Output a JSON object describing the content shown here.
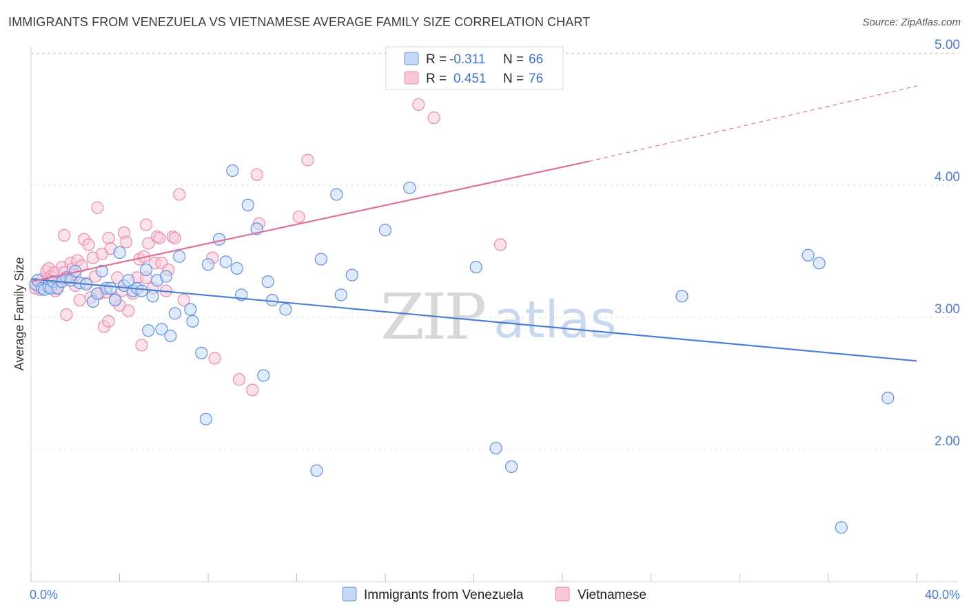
{
  "title": "IMMIGRANTS FROM VENEZUELA VS VIETNAMESE AVERAGE FAMILY SIZE CORRELATION CHART",
  "source": "Source: ZipAtlas.com",
  "watermark": {
    "zip": "ZIP",
    "atlas": "atlas"
  },
  "colors": {
    "blue": "#4a7fd4",
    "blue_fill": "#c5d8f5",
    "pink": "#e07099",
    "pink_fill": "#f8c8d8",
    "grid": "#dcdcdc",
    "axis_text": "#4a7bd0"
  },
  "legend": {
    "rows": [
      {
        "r_label": "R =",
        "r_value": "-0.311",
        "n_label": "N =",
        "n_value": "66",
        "series": "blue"
      },
      {
        "r_label": "R =",
        "r_value": "0.451",
        "n_label": "N =",
        "n_value": "76",
        "series": "pink"
      }
    ]
  },
  "chart_data": {
    "type": "scatter",
    "xlabel": "",
    "ylabel": "Average Family Size",
    "xlim": [
      0,
      40
    ],
    "ylim": [
      1.0,
      5.1
    ],
    "x_tick_labels": [
      "0.0%",
      "40.0%"
    ],
    "y_ticks": [
      2.0,
      3.0,
      4.0,
      5.0
    ],
    "y_tick_labels": [
      "2.00",
      "3.00",
      "4.00",
      "5.00"
    ],
    "grid": "horizontal dashed",
    "legend_placement": "bottom",
    "series": [
      {
        "name": "Immigrants from Venezuela",
        "color": "blue",
        "trend": {
          "x": [
            0,
            40
          ],
          "y": [
            3.29,
            2.67
          ],
          "dashed_from": null
        },
        "points": [
          [
            0.2,
            3.25
          ],
          [
            0.3,
            3.28
          ],
          [
            0.5,
            3.22
          ],
          [
            0.6,
            3.21
          ],
          [
            0.8,
            3.23
          ],
          [
            0.9,
            3.22
          ],
          [
            1.0,
            3.27
          ],
          [
            1.2,
            3.22
          ],
          [
            1.4,
            3.27
          ],
          [
            1.6,
            3.3
          ],
          [
            1.8,
            3.28
          ],
          [
            2.0,
            3.35
          ],
          [
            2.2,
            3.26
          ],
          [
            2.5,
            3.25
          ],
          [
            2.8,
            3.12
          ],
          [
            3.0,
            3.18
          ],
          [
            3.2,
            3.35
          ],
          [
            3.4,
            3.22
          ],
          [
            3.6,
            3.22
          ],
          [
            3.8,
            3.13
          ],
          [
            4.0,
            3.49
          ],
          [
            4.2,
            3.24
          ],
          [
            4.4,
            3.28
          ],
          [
            4.6,
            3.2
          ],
          [
            4.8,
            3.22
          ],
          [
            5.0,
            3.2
          ],
          [
            5.2,
            3.36
          ],
          [
            5.3,
            2.9
          ],
          [
            5.5,
            3.16
          ],
          [
            5.7,
            3.28
          ],
          [
            5.9,
            2.91
          ],
          [
            6.1,
            3.31
          ],
          [
            6.3,
            2.86
          ],
          [
            6.5,
            3.03
          ],
          [
            6.7,
            3.46
          ],
          [
            7.2,
            3.06
          ],
          [
            7.3,
            2.97
          ],
          [
            7.7,
            2.73
          ],
          [
            7.9,
            2.23
          ],
          [
            8.0,
            3.4
          ],
          [
            8.5,
            3.59
          ],
          [
            8.8,
            3.42
          ],
          [
            9.1,
            4.11
          ],
          [
            9.3,
            3.37
          ],
          [
            9.5,
            3.17
          ],
          [
            9.8,
            3.85
          ],
          [
            10.2,
            3.67
          ],
          [
            10.5,
            2.56
          ],
          [
            10.7,
            3.27
          ],
          [
            10.9,
            3.13
          ],
          [
            11.5,
            3.06
          ],
          [
            12.9,
            1.84
          ],
          [
            13.1,
            3.44
          ],
          [
            13.8,
            3.93
          ],
          [
            14.0,
            3.17
          ],
          [
            14.5,
            3.32
          ],
          [
            16.0,
            3.66
          ],
          [
            17.1,
            3.98
          ],
          [
            20.1,
            3.38
          ],
          [
            21.0,
            2.01
          ],
          [
            21.7,
            1.87
          ],
          [
            29.4,
            3.16
          ],
          [
            35.1,
            3.47
          ],
          [
            35.6,
            3.41
          ],
          [
            38.7,
            2.39
          ],
          [
            36.6,
            1.41
          ]
        ]
      },
      {
        "name": "Vietnamese",
        "color": "pink",
        "trend": {
          "x": [
            0,
            25.2
          ],
          "y": [
            3.27,
            4.18
          ],
          "dashed_to": [
            40,
            4.75
          ]
        },
        "points": [
          [
            0.2,
            3.22
          ],
          [
            0.3,
            3.24
          ],
          [
            0.4,
            3.21
          ],
          [
            0.5,
            3.29
          ],
          [
            0.6,
            3.25
          ],
          [
            0.7,
            3.35
          ],
          [
            0.8,
            3.37
          ],
          [
            0.9,
            3.31
          ],
          [
            1.0,
            3.3
          ],
          [
            1.1,
            3.34
          ],
          [
            1.2,
            3.23
          ],
          [
            1.3,
            3.27
          ],
          [
            1.4,
            3.38
          ],
          [
            1.5,
            3.34
          ],
          [
            1.5,
            3.62
          ],
          [
            1.6,
            3.02
          ],
          [
            1.7,
            3.3
          ],
          [
            1.8,
            3.41
          ],
          [
            1.9,
            3.37
          ],
          [
            2.0,
            3.32
          ],
          [
            2.1,
            3.43
          ],
          [
            2.2,
            3.13
          ],
          [
            2.3,
            3.39
          ],
          [
            2.4,
            3.59
          ],
          [
            2.5,
            3.26
          ],
          [
            2.6,
            3.55
          ],
          [
            2.7,
            3.15
          ],
          [
            2.8,
            3.45
          ],
          [
            2.9,
            3.31
          ],
          [
            3.0,
            3.83
          ],
          [
            3.1,
            3.18
          ],
          [
            3.2,
            3.48
          ],
          [
            3.3,
            2.93
          ],
          [
            3.4,
            3.19
          ],
          [
            3.5,
            2.97
          ],
          [
            3.5,
            3.6
          ],
          [
            3.6,
            3.52
          ],
          [
            3.8,
            3.14
          ],
          [
            3.9,
            3.3
          ],
          [
            4.0,
            3.09
          ],
          [
            4.1,
            3.2
          ],
          [
            4.2,
            3.64
          ],
          [
            4.3,
            3.57
          ],
          [
            4.4,
            3.05
          ],
          [
            4.6,
            3.18
          ],
          [
            4.8,
            3.3
          ],
          [
            4.9,
            3.44
          ],
          [
            5.0,
            2.79
          ],
          [
            5.1,
            3.46
          ],
          [
            5.2,
            3.7
          ],
          [
            5.3,
            3.56
          ],
          [
            5.5,
            3.22
          ],
          [
            5.6,
            3.41
          ],
          [
            5.7,
            3.61
          ],
          [
            5.8,
            3.6
          ],
          [
            5.9,
            3.41
          ],
          [
            6.1,
            3.2
          ],
          [
            6.2,
            3.36
          ],
          [
            6.4,
            3.61
          ],
          [
            6.5,
            3.6
          ],
          [
            6.7,
            3.93
          ],
          [
            6.9,
            3.13
          ],
          [
            8.2,
            3.45
          ],
          [
            8.3,
            2.69
          ],
          [
            9.4,
            2.53
          ],
          [
            10.0,
            2.45
          ],
          [
            10.2,
            4.08
          ],
          [
            10.3,
            3.71
          ],
          [
            12.1,
            3.76
          ],
          [
            12.5,
            4.19
          ],
          [
            17.5,
            4.61
          ],
          [
            18.2,
            4.51
          ],
          [
            21.2,
            3.55
          ],
          [
            5.2,
            3.3
          ],
          [
            2.0,
            3.24
          ],
          [
            1.1,
            3.2
          ]
        ]
      }
    ]
  }
}
